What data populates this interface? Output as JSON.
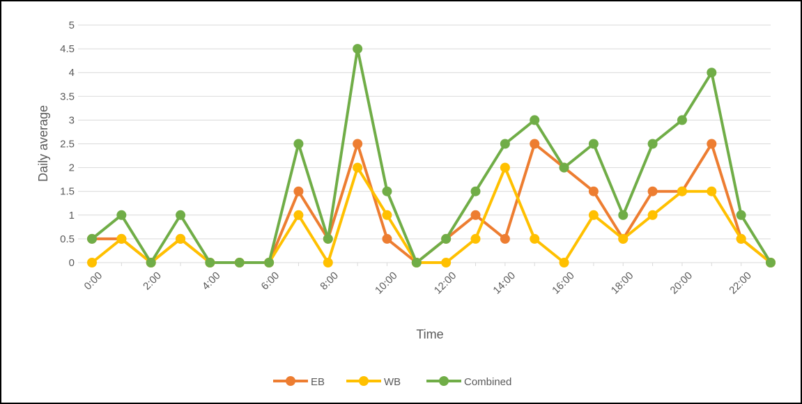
{
  "chart_data": {
    "type": "line",
    "title": "",
    "xlabel": "Time",
    "ylabel": "Daily average",
    "ylim": [
      0,
      5
    ],
    "y_ticks": [
      "0",
      "0.5",
      "1",
      "1.5",
      "2",
      "2.5",
      "3",
      "3.5",
      "4",
      "4.5",
      "5"
    ],
    "x": [
      "0:00",
      "1:00",
      "2:00",
      "3:00",
      "4:00",
      "5:00",
      "6:00",
      "7:00",
      "8:00",
      "9:00",
      "10:00",
      "11:00",
      "12:00",
      "13:00",
      "14:00",
      "15:00",
      "16:00",
      "17:00",
      "18:00",
      "19:00",
      "20:00",
      "21:00",
      "22:00",
      "23:00"
    ],
    "x_tick_labels": [
      "0:00",
      "2:00",
      "4:00",
      "6:00",
      "8:00",
      "10:00",
      "12:00",
      "14:00",
      "16:00",
      "18:00",
      "20:00",
      "22:00"
    ],
    "grid": true,
    "legend_position": "bottom",
    "series": [
      {
        "name": "EB",
        "color": "#ED7D31",
        "values": [
          0.5,
          0.5,
          0,
          0.5,
          0,
          0,
          0,
          1.5,
          0.5,
          2.5,
          0.5,
          0,
          0.5,
          1,
          0.5,
          2.5,
          2,
          1.5,
          0.5,
          1.5,
          1.5,
          2.5,
          0.5,
          0
        ]
      },
      {
        "name": "WB",
        "color": "#FFC000",
        "values": [
          0,
          0.5,
          0,
          0.5,
          0,
          0,
          0,
          1,
          0,
          2,
          1,
          0,
          0,
          0.5,
          2,
          0.5,
          0,
          1,
          0.5,
          1,
          1.5,
          1.5,
          0.5,
          0
        ]
      },
      {
        "name": "Combined",
        "color": "#70AD47",
        "values": [
          0.5,
          1,
          0,
          1,
          0,
          0,
          0,
          2.5,
          0.5,
          4.5,
          1.5,
          0,
          0.5,
          1.5,
          2.5,
          3,
          2,
          2.5,
          1,
          2.5,
          3,
          4,
          1,
          0
        ]
      }
    ]
  }
}
